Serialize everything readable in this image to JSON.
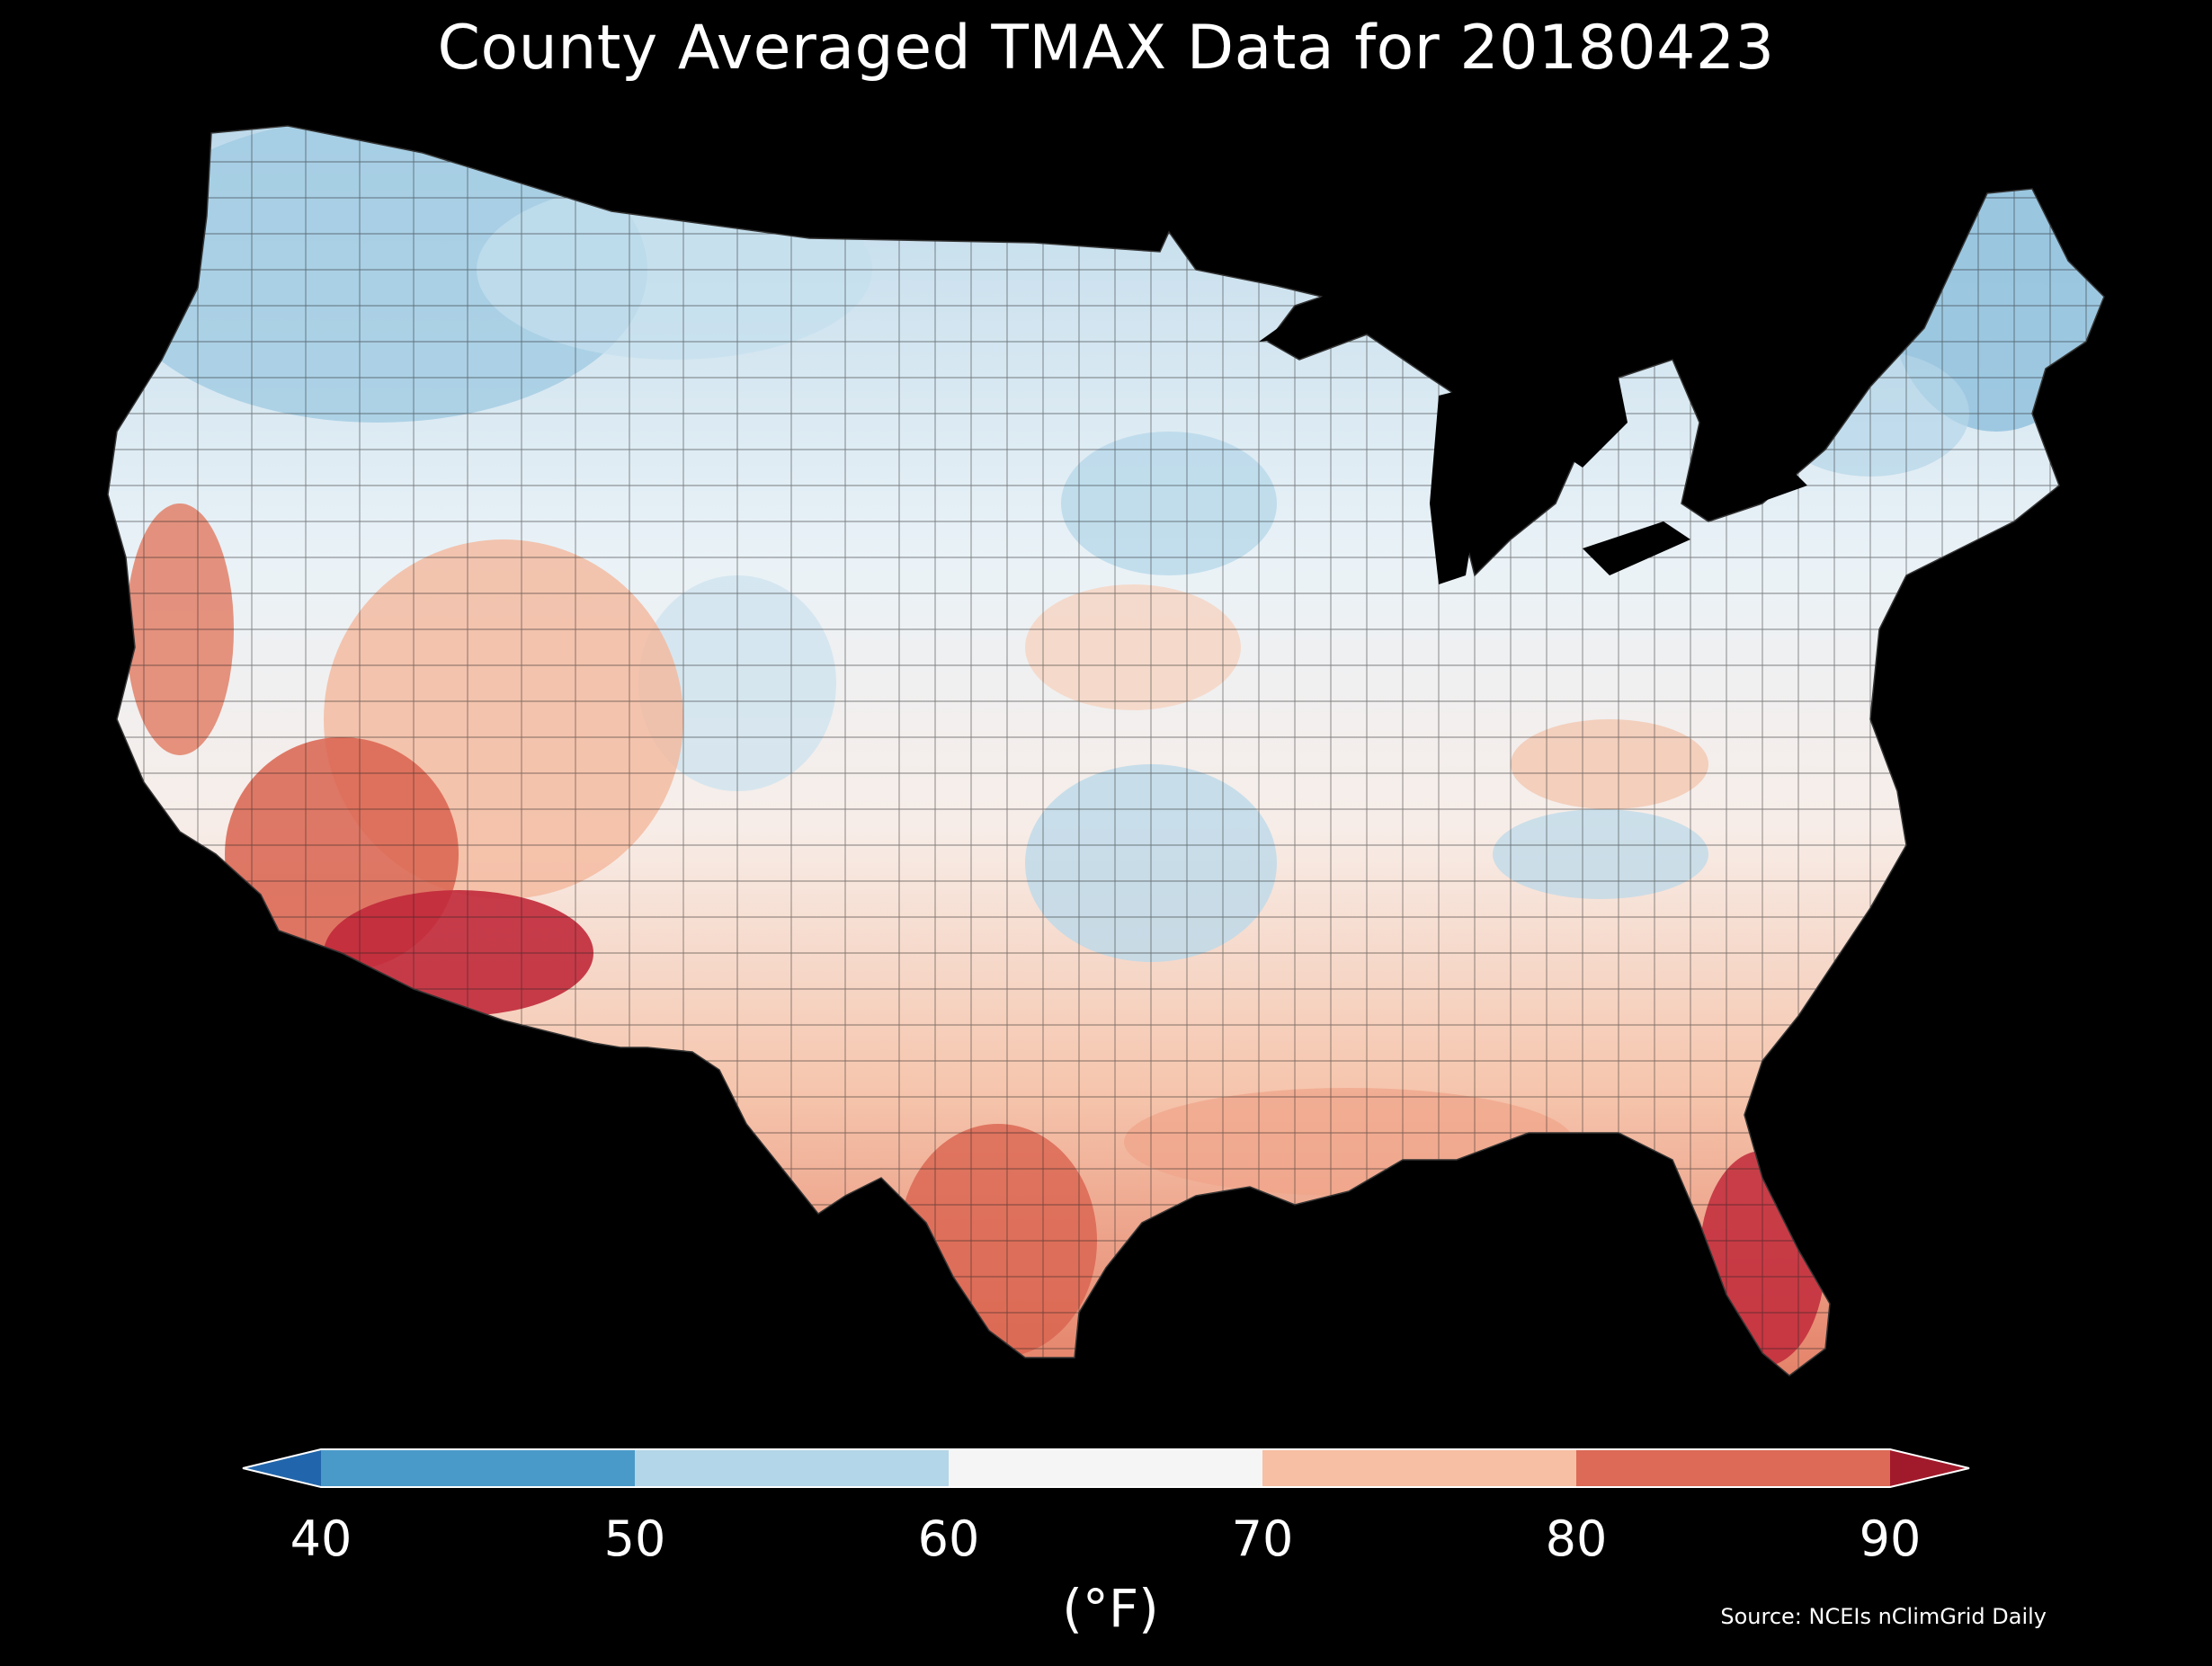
{
  "title": "County Averaged TMAX Data for 20180423",
  "colorbar": {
    "ticks": [
      "40",
      "50",
      "60",
      "70",
      "80",
      "90"
    ],
    "unit": "(°F)",
    "extend": "both",
    "bins": [
      {
        "range": "<40",
        "color": "#2166ac"
      },
      {
        "range": "40-50",
        "color": "#4a9ac9"
      },
      {
        "range": "50-60",
        "color": "#b3d6e8"
      },
      {
        "range": "60-70",
        "color": "#f5f5f5"
      },
      {
        "range": "70-80",
        "color": "#f7bfa3"
      },
      {
        "range": "80-90",
        "color": "#dc6a57"
      },
      {
        "range": ">90",
        "color": "#a11a2b"
      }
    ]
  },
  "source": "Source: NCEIs nClimGrid Daily",
  "background_color": "#000000",
  "map_notes": "Choropleth of contiguous US counties; cooler (blue) in northern Rockies/Plains/New England, warmer (red) in desert Southwest, south Texas and south Florida."
}
